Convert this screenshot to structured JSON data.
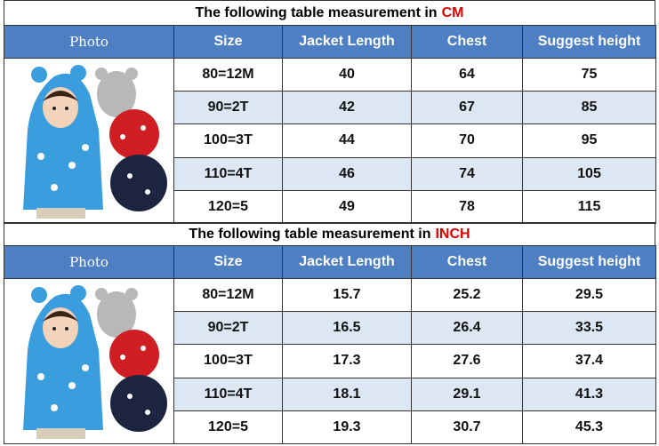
{
  "tables": [
    {
      "title": {
        "text": "The following table measurement in",
        "unit": "CM"
      },
      "headers": [
        "Photo",
        "Size",
        "Jacket Length",
        "Chest",
        "Suggest height"
      ],
      "rows": [
        [
          "80=12M",
          40,
          64,
          75
        ],
        [
          "90=2T",
          42,
          67,
          85
        ],
        [
          "100=3T",
          44,
          70,
          95
        ],
        [
          "110=4T",
          46,
          74,
          105
        ],
        [
          "120=5",
          49,
          78,
          115
        ]
      ]
    },
    {
      "title": {
        "text": "The following table measurement in",
        "unit": "INCH"
      },
      "headers": [
        "Photo",
        "Size",
        "Jacket Length",
        "Chest",
        "Suggest height"
      ],
      "rows": [
        [
          "80=12M",
          15.7,
          25.2,
          29.5
        ],
        [
          "90=2T",
          16.5,
          26.4,
          33.5
        ],
        [
          "100=3T",
          17.3,
          27.6,
          37.4
        ],
        [
          "110=4T",
          18.1,
          29.1,
          41.3
        ],
        [
          "120=5",
          19.3,
          30.7,
          45.3
        ]
      ]
    }
  ]
}
